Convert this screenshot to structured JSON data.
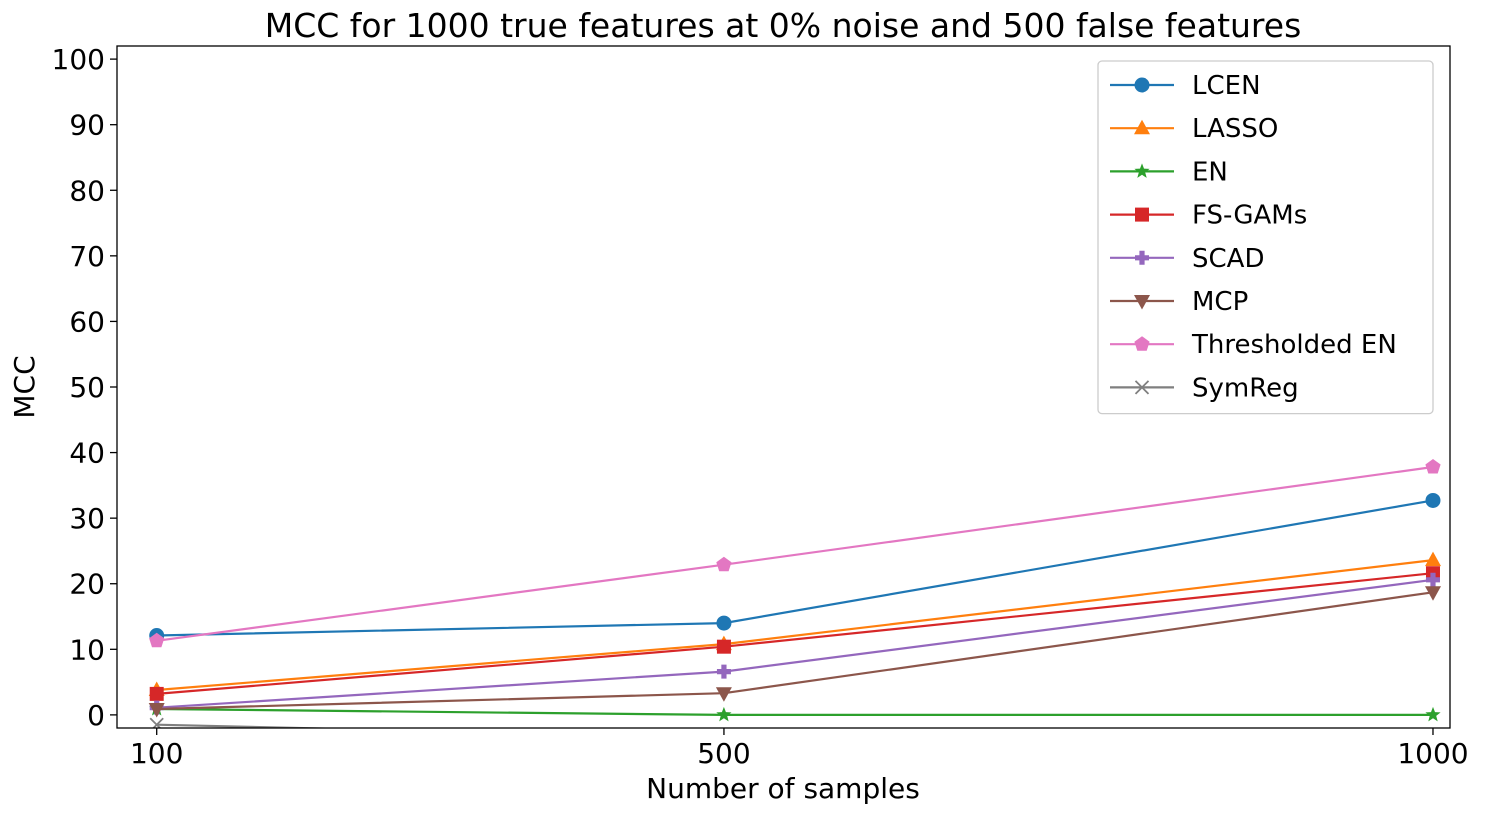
{
  "chart_data": {
    "type": "line",
    "title": "MCC for 1000 true features at 0% noise and 500 false features",
    "xlabel": "Number of samples",
    "ylabel": "MCC",
    "x": [
      100,
      500,
      1000
    ],
    "x_ticks": [
      "100",
      "500",
      "1000"
    ],
    "y_ticks": [
      "0",
      "10",
      "20",
      "30",
      "40",
      "50",
      "60",
      "70",
      "80",
      "90",
      "100"
    ],
    "ylim": [
      -2,
      102
    ],
    "legend_position": "top-right",
    "grid": false,
    "series": [
      {
        "name": "LCEN",
        "color": "#1f77b4",
        "marker": "circle",
        "values": [
          12.1,
          14.0,
          32.7
        ]
      },
      {
        "name": "LASSO",
        "color": "#ff7f0e",
        "marker": "triangle-up",
        "values": [
          3.8,
          10.8,
          23.6
        ]
      },
      {
        "name": "EN",
        "color": "#2ca02c",
        "marker": "star",
        "values": [
          0.9,
          0.0,
          0.0
        ]
      },
      {
        "name": "FS-GAMs",
        "color": "#d62728",
        "marker": "square",
        "values": [
          3.2,
          10.4,
          21.6
        ]
      },
      {
        "name": "SCAD",
        "color": "#9467bd",
        "marker": "plus",
        "values": [
          1.1,
          6.6,
          20.6
        ]
      },
      {
        "name": "MCP",
        "color": "#8c564b",
        "marker": "triangle-down",
        "values": [
          0.9,
          3.3,
          18.7
        ]
      },
      {
        "name": "Thresholded EN",
        "color": "#e377c2",
        "marker": "pentagon",
        "values": [
          11.3,
          22.9,
          37.8
        ]
      },
      {
        "name": "SymReg",
        "color": "#7f7f7f",
        "marker": "x",
        "values": [
          -1.5,
          -3.5,
          -3.5
        ]
      }
    ]
  }
}
